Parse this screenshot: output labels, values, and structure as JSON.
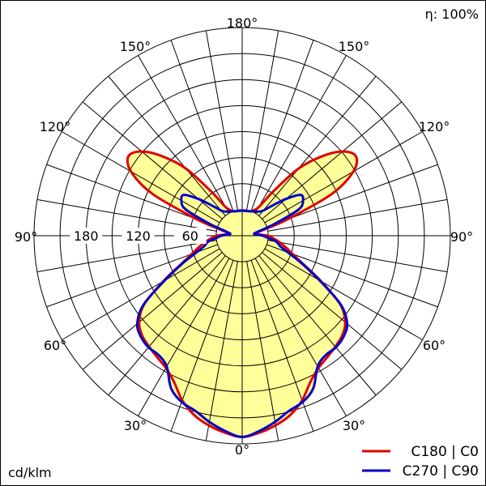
{
  "chart_data": {
    "type": "polar",
    "efficiency_label": "η: 100%",
    "unit_label": "cd/klm",
    "angle_labels": {
      "top": "180°",
      "left": "90°",
      "right": "90°",
      "bottom": "0°",
      "left_150": "150°",
      "right_150": "150°",
      "left_120": "120°",
      "right_120": "120°",
      "left_60": "60°",
      "right_60": "60°",
      "left_30": "30°",
      "right_30": "30°"
    },
    "radial_labels": [
      "60",
      "120",
      "180"
    ],
    "radial_label_values": [
      60,
      120,
      180
    ],
    "rmax": 240,
    "grid": true,
    "colors": {
      "C0": "#e00000",
      "C90": "#0000c8",
      "fill": "#ffff99"
    },
    "series": [
      {
        "name": "C180 | C0",
        "color": "#e00000",
        "angles": [
          0,
          5,
          10,
          15,
          20,
          25,
          30,
          35,
          40,
          45,
          50,
          55,
          60,
          65,
          70,
          75,
          80,
          85,
          90,
          95,
          100,
          105,
          110,
          115,
          120,
          125,
          130,
          135,
          140,
          145,
          150,
          160,
          170,
          180
        ],
        "values": [
          232,
          228,
          222,
          214,
          202,
          186,
          176,
          171,
          167,
          163,
          155,
          138,
          105,
          78,
          62,
          52,
          44,
          36,
          30,
          18,
          15,
          24,
          56,
          114,
          148,
          160,
          151,
          129,
          101,
          62,
          38,
          30,
          29,
          29
        ]
      },
      {
        "name": "C270 | C90",
        "color": "#0000c8",
        "angles": [
          0,
          5,
          10,
          15,
          20,
          25,
          30,
          35,
          40,
          45,
          50,
          55,
          60,
          65,
          70,
          75,
          80,
          85,
          90,
          95,
          100,
          105,
          110,
          115,
          120,
          125,
          130,
          135,
          140,
          145,
          150,
          160,
          170,
          180
        ],
        "values": [
          232,
          226,
          218,
          209,
          204,
          194,
          174,
          168,
          168,
          165,
          158,
          139,
          103,
          76,
          56,
          45,
          40,
          30,
          24,
          16,
          14,
          20,
          40,
          72,
          81,
          82,
          66,
          49,
          38,
          34,
          32,
          30,
          29,
          29
        ]
      }
    ]
  }
}
